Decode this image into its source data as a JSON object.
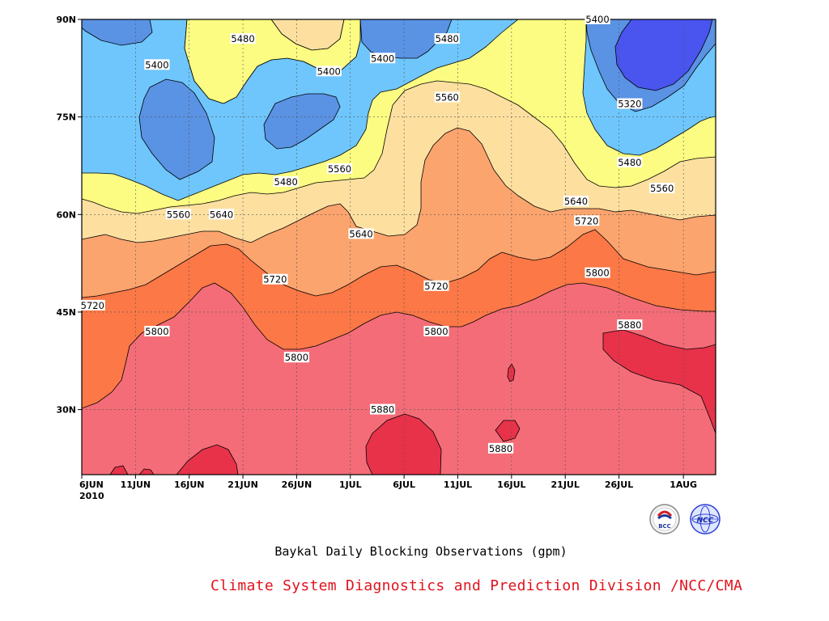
{
  "chart_data": {
    "type": "contour",
    "title": "",
    "caption": "Baykal Daily Blocking Observations (gpm)",
    "credit": "Climate System Diagnostics and Prediction Division /NCC/CMA",
    "xaxis": {
      "ticks": [
        "6JUN",
        "11JUN",
        "16JUN",
        "21JUN",
        "26JUN",
        "1JUL",
        "6JUL",
        "11JUL",
        "16JUL",
        "21JUL",
        "26JUL",
        "1AUG"
      ],
      "year": "2010",
      "range": [
        "2010-06-06",
        "2010-08-04"
      ]
    },
    "yaxis": {
      "ticks": [
        "30N",
        "45N",
        "60N",
        "75N",
        "90N"
      ],
      "tick_values": [
        30,
        45,
        60,
        75,
        90
      ],
      "range": [
        20,
        90
      ],
      "units": "latitude"
    },
    "grid": true,
    "contour_levels": [
      5320,
      5400,
      5480,
      5560,
      5640,
      5720,
      5800,
      5880
    ],
    "fill_colors": {
      "below_5320": "#4a54ee",
      "5320_5400": "#5a92e4",
      "5400_5480": "#6ec6fc",
      "5480_5560": "#fcfc82",
      "5560_5640": "#fde0a0",
      "5640_5720": "#fca46e",
      "5720_5800": "#fc7846",
      "5800_5880": "#f46c78",
      "above_5880": "#e8324a"
    },
    "contour_labels": [
      {
        "text": "5400",
        "date": "06-13",
        "lat": 83
      },
      {
        "text": "5480",
        "date": "06-21",
        "lat": 87
      },
      {
        "text": "5400",
        "date": "06-29",
        "lat": 82
      },
      {
        "text": "5400",
        "date": "07-04",
        "lat": 84
      },
      {
        "text": "5480",
        "date": "07-10",
        "lat": 87
      },
      {
        "text": "5400",
        "date": "07-24",
        "lat": 90
      },
      {
        "text": "5320",
        "date": "07-27",
        "lat": 77
      },
      {
        "text": "5560",
        "date": "07-10",
        "lat": 78
      },
      {
        "text": "5560",
        "date": "06-30",
        "lat": 67
      },
      {
        "text": "5480",
        "date": "06-25",
        "lat": 65
      },
      {
        "text": "5480",
        "date": "07-27",
        "lat": 68
      },
      {
        "text": "5560",
        "date": "07-30",
        "lat": 64
      },
      {
        "text": "5640",
        "date": "07-22",
        "lat": 62
      },
      {
        "text": "5560",
        "date": "06-15",
        "lat": 60
      },
      {
        "text": "5640",
        "date": "06-19",
        "lat": 60
      },
      {
        "text": "5640",
        "date": "07-02",
        "lat": 57
      },
      {
        "text": "5720",
        "date": "07-23",
        "lat": 59
      },
      {
        "text": "5720",
        "date": "06-24",
        "lat": 50
      },
      {
        "text": "5720",
        "date": "07-09",
        "lat": 49
      },
      {
        "text": "5800",
        "date": "07-24",
        "lat": 51
      },
      {
        "text": "5720",
        "date": "06-07",
        "lat": 46
      },
      {
        "text": "5800",
        "date": "06-13",
        "lat": 42
      },
      {
        "text": "5800",
        "date": "06-26",
        "lat": 38
      },
      {
        "text": "5800",
        "date": "07-09",
        "lat": 42
      },
      {
        "text": "5880",
        "date": "07-27",
        "lat": 43
      },
      {
        "text": "5880",
        "date": "07-04",
        "lat": 30
      },
      {
        "text": "5880",
        "date": "07-15",
        "lat": 24
      }
    ],
    "logos": [
      "BCC",
      "NCC"
    ]
  }
}
